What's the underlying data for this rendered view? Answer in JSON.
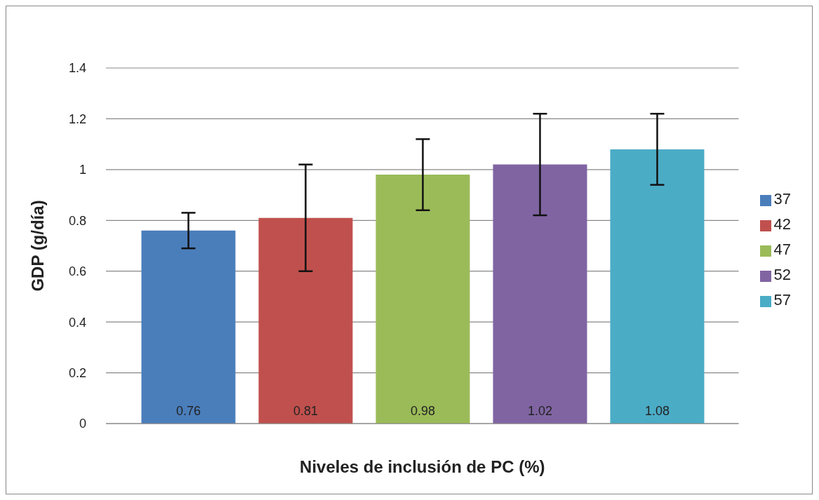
{
  "chart_data": {
    "type": "bar",
    "xlabel": "Niveles de inclusión de PC (%)",
    "ylabel": "GDP (g/día)",
    "categories": [
      null
    ],
    "series": [
      {
        "name": "37",
        "color": "#4a7ebb",
        "values": [
          0.76
        ],
        "errors": [
          0.07
        ]
      },
      {
        "name": "42",
        "color": "#c0504d",
        "values": [
          0.81
        ],
        "errors": [
          0.21
        ]
      },
      {
        "name": "47",
        "color": "#9bbb59",
        "values": [
          0.98
        ],
        "errors": [
          0.14
        ]
      },
      {
        "name": "52",
        "color": "#8064a2",
        "values": [
          1.02
        ],
        "errors": [
          0.2
        ]
      },
      {
        "name": "57",
        "color": "#4bacc6",
        "values": [
          1.08
        ],
        "errors": [
          0.14
        ]
      }
    ],
    "ylim": [
      0,
      1.4
    ],
    "yticks": [
      0,
      0.2,
      0.4,
      0.6,
      0.8,
      1,
      1.2,
      1.4
    ],
    "grid": "y",
    "legend": "right",
    "data_labels": true
  }
}
